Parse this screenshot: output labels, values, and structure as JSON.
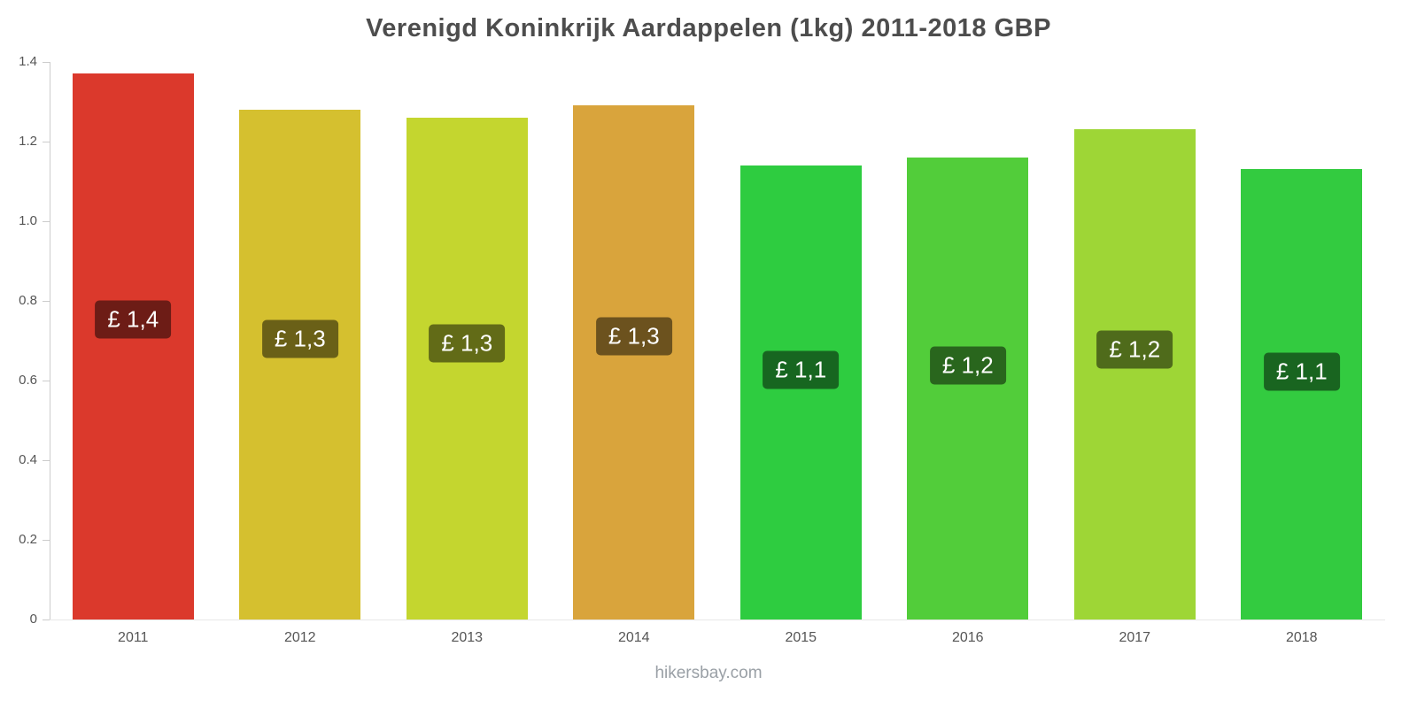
{
  "footer": "hikersbay.com",
  "chart_data": {
    "type": "bar",
    "title": "Verenigd Koninkrijk Aardappelen (1kg) 2011-2018 GBP",
    "xlabel": "",
    "ylabel": "",
    "categories": [
      "2011",
      "2012",
      "2013",
      "2014",
      "2015",
      "2016",
      "2017",
      "2018"
    ],
    "values": [
      1.37,
      1.28,
      1.26,
      1.29,
      1.14,
      1.16,
      1.23,
      1.13
    ],
    "bar_labels": [
      "£ 1,4",
      "£ 1,3",
      "£ 1,3",
      "£ 1,3",
      "£ 1,1",
      "£ 1,2",
      "£ 1,2",
      "£ 1,1"
    ],
    "bar_colors": [
      "#db392c",
      "#d5c02f",
      "#c4d62f",
      "#d9a43c",
      "#2ecc40",
      "#52cd3a",
      "#9ed636",
      "#33cb40"
    ],
    "label_bg_overlay": "rgba(0,0,0,0.5)",
    "label_text_color": "#ffffff",
    "ylim": [
      0,
      1.4
    ],
    "yticks": [
      0,
      0.2,
      0.4,
      0.6,
      0.8,
      1.0,
      1.2,
      1.4
    ],
    "ytick_labels": [
      "0",
      "0.2",
      "0.4",
      "0.6",
      "0.8",
      "1.0",
      "1.2",
      "1.4"
    ],
    "grid": false,
    "legend": false
  }
}
